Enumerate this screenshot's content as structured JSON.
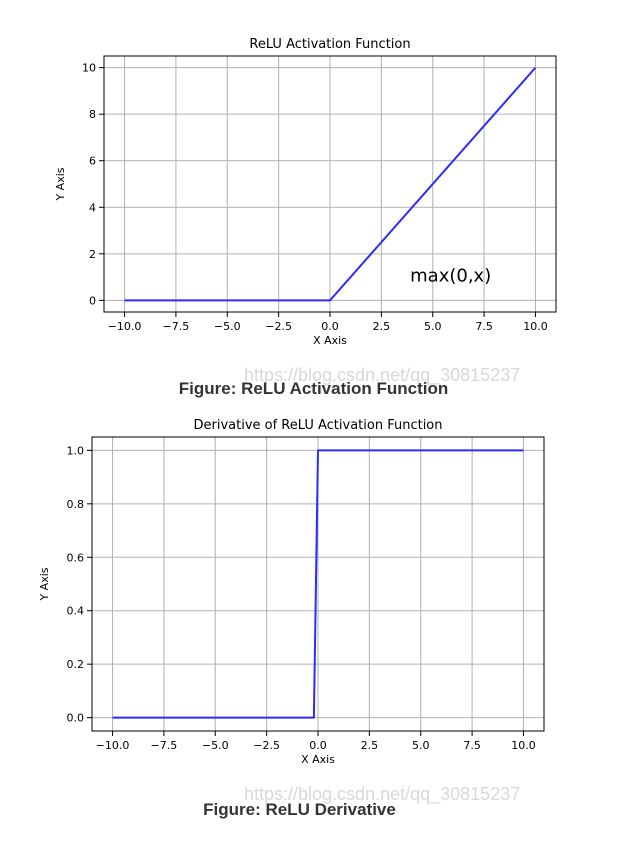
{
  "chart_data": [
    {
      "type": "line",
      "title": "ReLU Activation Function",
      "xlabel": "X Axis",
      "ylabel": "Y Axis",
      "xlim": [
        -11,
        11
      ],
      "ylim": [
        -0.5,
        10.5
      ],
      "xticks": [
        -10.0,
        -7.5,
        -5.0,
        -2.5,
        0.0,
        2.5,
        5.0,
        7.5,
        10.0
      ],
      "xtick_labels": [
        "−10.0",
        "−7.5",
        "−5.0",
        "−2.5",
        "0.0",
        "2.5",
        "5.0",
        "7.5",
        "10.0"
      ],
      "yticks": [
        0,
        2,
        4,
        6,
        8,
        10
      ],
      "ytick_labels": [
        "0",
        "2",
        "4",
        "6",
        "8",
        "10"
      ],
      "grid": true,
      "series": [
        {
          "color": "#2b2bff",
          "x": [
            -10,
            0,
            10
          ],
          "y": [
            0,
            0,
            10
          ]
        }
      ],
      "annotations": [
        {
          "text": "max(0,x)",
          "x": 3.9,
          "y": 0.8
        }
      ]
    },
    {
      "type": "line",
      "title": "Derivative of ReLU Activation Function",
      "xlabel": "X Axis",
      "ylabel": "Y Axis",
      "xlim": [
        -11,
        11
      ],
      "ylim": [
        -0.05,
        1.05
      ],
      "xticks": [
        -10.0,
        -7.5,
        -5.0,
        -2.5,
        0.0,
        2.5,
        5.0,
        7.5,
        10.0
      ],
      "xtick_labels": [
        "−10.0",
        "−7.5",
        "−5.0",
        "−2.5",
        "0.0",
        "2.5",
        "5.0",
        "7.5",
        "10.0"
      ],
      "yticks": [
        0.0,
        0.2,
        0.4,
        0.6,
        0.8,
        1.0
      ],
      "ytick_labels": [
        "0.0",
        "0.2",
        "0.4",
        "0.6",
        "0.8",
        "1.0"
      ],
      "grid": true,
      "series": [
        {
          "color": "#2b2bff",
          "x": [
            -10,
            -0.2,
            0.0,
            10
          ],
          "y": [
            0,
            0,
            1,
            1
          ]
        }
      ],
      "annotations": []
    }
  ],
  "captions": {
    "top": "Figure: ReLU Activation Function",
    "bottom": "Figure: ReLU Derivative"
  },
  "watermarks": {
    "top": "https://blog.csdn.net/qq_30815237",
    "bottom": "https://blog.csdn.net/qq_30815237"
  }
}
